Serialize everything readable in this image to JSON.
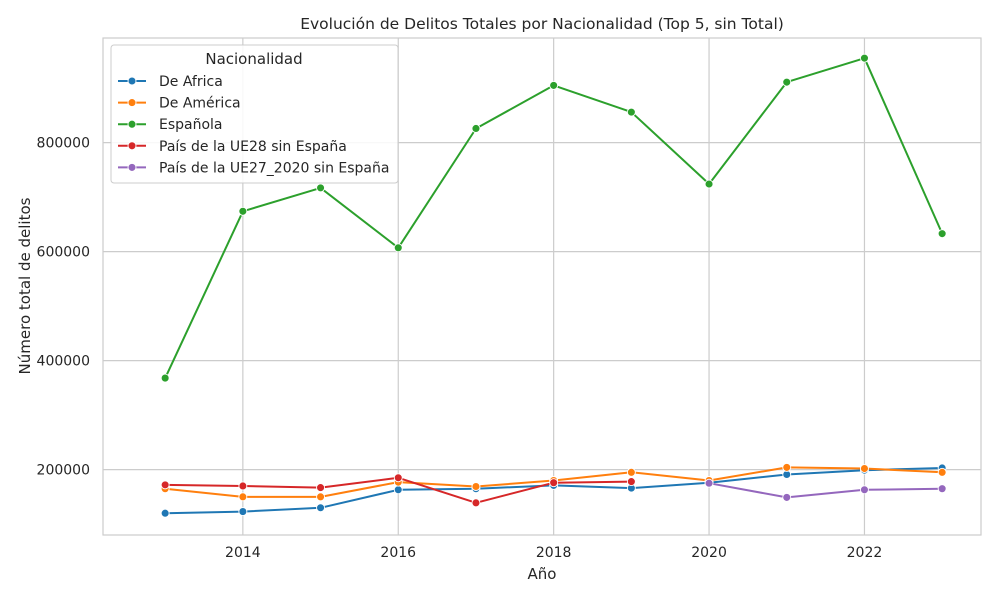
{
  "chart_data": {
    "type": "line",
    "title": "Evolución de Delitos Totales por Nacionalidad (Top 5, sin Total)",
    "xlabel": "Año",
    "ylabel": "Número total de delitos",
    "x_ticks": [
      2014,
      2016,
      2018,
      2020,
      2022
    ],
    "y_ticks": [
      200000,
      400000,
      600000,
      800000
    ],
    "xlim": [
      2012.2,
      2023.5
    ],
    "ylim": [
      80000,
      992000
    ],
    "grid": true,
    "legend": {
      "title": "Nacionalidad",
      "placement": "top-left"
    },
    "series": [
      {
        "name": "De Africa",
        "color": "#1f77b4",
        "points": [
          [
            2013,
            120000
          ],
          [
            2014,
            123000
          ],
          [
            2015,
            130000
          ],
          [
            2016,
            163000
          ],
          [
            2017,
            165000
          ],
          [
            2018,
            171000
          ],
          [
            2019,
            166000
          ],
          [
            2020,
            176000
          ],
          [
            2021,
            191000
          ],
          [
            2022,
            199000
          ],
          [
            2023,
            203000
          ]
        ]
      },
      {
        "name": "De América",
        "color": "#ff7f0e",
        "points": [
          [
            2013,
            165000
          ],
          [
            2014,
            150000
          ],
          [
            2015,
            150000
          ],
          [
            2016,
            177000
          ],
          [
            2017,
            169000
          ],
          [
            2018,
            180000
          ],
          [
            2019,
            195000
          ],
          [
            2020,
            180000
          ],
          [
            2021,
            204000
          ],
          [
            2022,
            202000
          ],
          [
            2023,
            195000
          ]
        ]
      },
      {
        "name": "Española",
        "color": "#2ca02c",
        "points": [
          [
            2013,
            368000
          ],
          [
            2014,
            674000
          ],
          [
            2015,
            717000
          ],
          [
            2016,
            607000
          ],
          [
            2017,
            826000
          ],
          [
            2018,
            905000
          ],
          [
            2019,
            856000
          ],
          [
            2020,
            724000
          ],
          [
            2021,
            911000
          ],
          [
            2022,
            955000
          ],
          [
            2023,
            633000
          ]
        ]
      },
      {
        "name": "País de la UE28 sin España",
        "color": "#d62728",
        "points": [
          [
            2013,
            172000
          ],
          [
            2014,
            170000
          ],
          [
            2015,
            167000
          ],
          [
            2016,
            185000
          ],
          [
            2017,
            139000
          ],
          [
            2018,
            176000
          ],
          [
            2019,
            178000
          ]
        ]
      },
      {
        "name": "País de la UE27_2020 sin España",
        "color": "#9467bd",
        "points": [
          [
            2020,
            175000
          ],
          [
            2021,
            149000
          ],
          [
            2022,
            163000
          ],
          [
            2023,
            165000
          ]
        ]
      }
    ]
  }
}
